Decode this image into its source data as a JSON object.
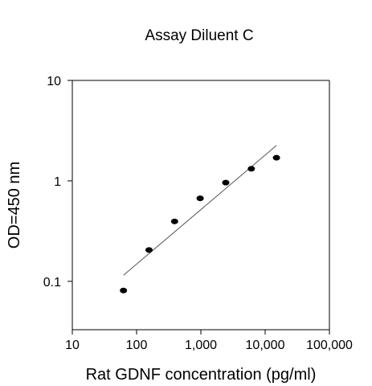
{
  "chart_data": {
    "type": "scatter",
    "title": "Assay Diluent C",
    "xlabel": "Rat GDNF concentration (pg/ml)",
    "ylabel": "OD=450 nm",
    "x_scale": "log",
    "y_scale": "log",
    "xlim": [
      10,
      100000
    ],
    "ylim": [
      0.033,
      10
    ],
    "x_ticks": [
      10,
      100,
      1000,
      10000,
      100000
    ],
    "x_tick_labels": [
      "10",
      "100",
      "1,000",
      "10,000",
      "100,000"
    ],
    "y_ticks": [
      0.1,
      1,
      10
    ],
    "y_tick_labels": [
      "0.1",
      "1",
      "10"
    ],
    "grid": false,
    "legend": false,
    "series": [
      {
        "points": [
          {
            "x": 62.5,
            "y": 0.081
          },
          {
            "x": 156,
            "y": 0.205
          },
          {
            "x": 390,
            "y": 0.395
          },
          {
            "x": 975,
            "y": 0.67
          },
          {
            "x": 2440,
            "y": 0.96
          },
          {
            "x": 6100,
            "y": 1.32
          },
          {
            "x": 15000,
            "y": 1.7
          }
        ],
        "fit_line": {
          "x": [
            62.5,
            15000
          ],
          "y": [
            0.115,
            2.25
          ]
        }
      }
    ],
    "colors": {
      "points": "#000000",
      "fit_line": "#555555",
      "axes": "#000000"
    }
  }
}
